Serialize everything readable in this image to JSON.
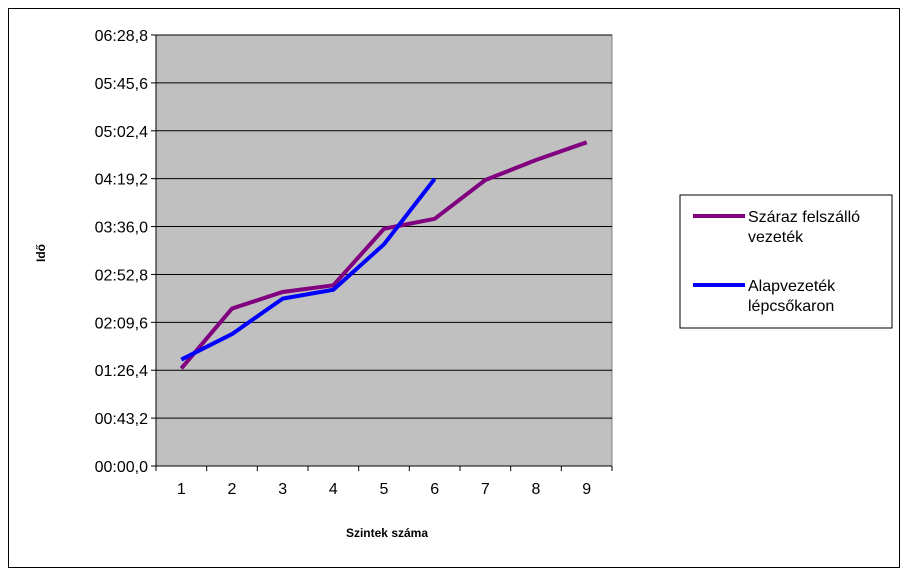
{
  "chart_data": {
    "type": "line",
    "title": "",
    "xlabel": "Szintek száma",
    "ylabel": "Idő",
    "categories": [
      "1",
      "2",
      "3",
      "4",
      "5",
      "6",
      "7",
      "8",
      "9"
    ],
    "y_ticks": [
      "00:00,0",
      "00:43,2",
      "01:26,4",
      "02:09,6",
      "02:52,8",
      "03:36,0",
      "04:19,2",
      "05:02,4",
      "05:45,6",
      "06:28,8"
    ],
    "ylim_seconds": [
      0,
      388.8
    ],
    "grid": true,
    "legend_position": "right",
    "plot_background": "#c0c0c0",
    "series": [
      {
        "name": "Száraz felszálló vezeték",
        "color": "#800080",
        "values_seconds": [
          88,
          142,
          157,
          163,
          214,
          223,
          258,
          276,
          292
        ]
      },
      {
        "name": "Alapvezeték lépcsőkaron",
        "color": "#0000ff",
        "values_seconds": [
          96,
          119,
          151,
          159,
          200,
          259
        ]
      }
    ]
  }
}
